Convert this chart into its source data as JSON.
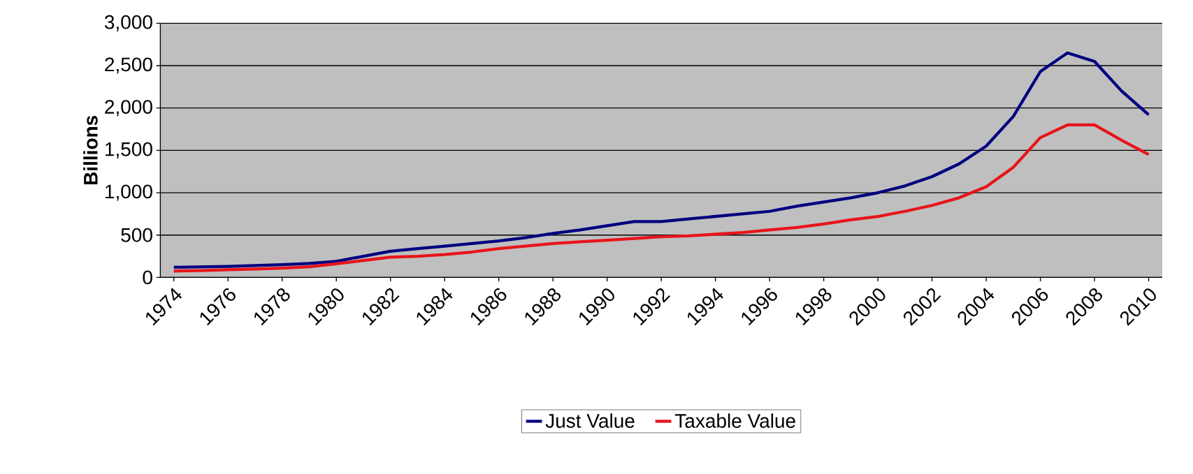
{
  "chart_data": {
    "type": "line",
    "ylabel": "Billions",
    "x": [
      1974,
      1975,
      1976,
      1977,
      1978,
      1979,
      1980,
      1981,
      1982,
      1983,
      1984,
      1985,
      1986,
      1987,
      1988,
      1989,
      1990,
      1991,
      1992,
      1993,
      1994,
      1995,
      1996,
      1997,
      1998,
      1999,
      2000,
      2001,
      2002,
      2003,
      2004,
      2005,
      2006,
      2007,
      2008,
      2009,
      2010
    ],
    "series": [
      {
        "name": "Just Value",
        "color": "#000080",
        "values": [
          120,
          125,
          130,
          140,
          150,
          165,
          190,
          250,
          310,
          340,
          370,
          400,
          430,
          470,
          520,
          560,
          610,
          660,
          660,
          690,
          720,
          750,
          780,
          840,
          890,
          940,
          1000,
          1080,
          1190,
          1340,
          1550,
          1900,
          2430,
          2650,
          2550,
          2200,
          1920
        ]
      },
      {
        "name": "Taxable Value",
        "color": "#e8141b",
        "values": [
          75,
          80,
          90,
          100,
          110,
          125,
          160,
          200,
          240,
          250,
          270,
          300,
          340,
          370,
          400,
          420,
          440,
          460,
          480,
          490,
          510,
          530,
          560,
          590,
          630,
          680,
          720,
          780,
          850,
          940,
          1070,
          1300,
          1650,
          1800,
          1800,
          1620,
          1450
        ]
      }
    ],
    "xlim": [
      1973.5,
      2010.5
    ],
    "xticks": [
      1974,
      1976,
      1978,
      1980,
      1982,
      1984,
      1986,
      1988,
      1990,
      1992,
      1994,
      1996,
      1998,
      2000,
      2002,
      2004,
      2006,
      2008,
      2010
    ],
    "ylim": [
      0,
      3000
    ],
    "yticks": [
      0,
      500,
      {
        "value": 1000,
        "label": "1,000"
      },
      {
        "value": 1500,
        "label": "1,500"
      },
      {
        "value": 2000,
        "label": "2,000"
      },
      {
        "value": 2500,
        "label": "2,500"
      },
      {
        "value": 3000,
        "label": "3,000"
      }
    ],
    "grid": "y",
    "legend": "bottom",
    "marker": "none",
    "line_style": "solid"
  }
}
